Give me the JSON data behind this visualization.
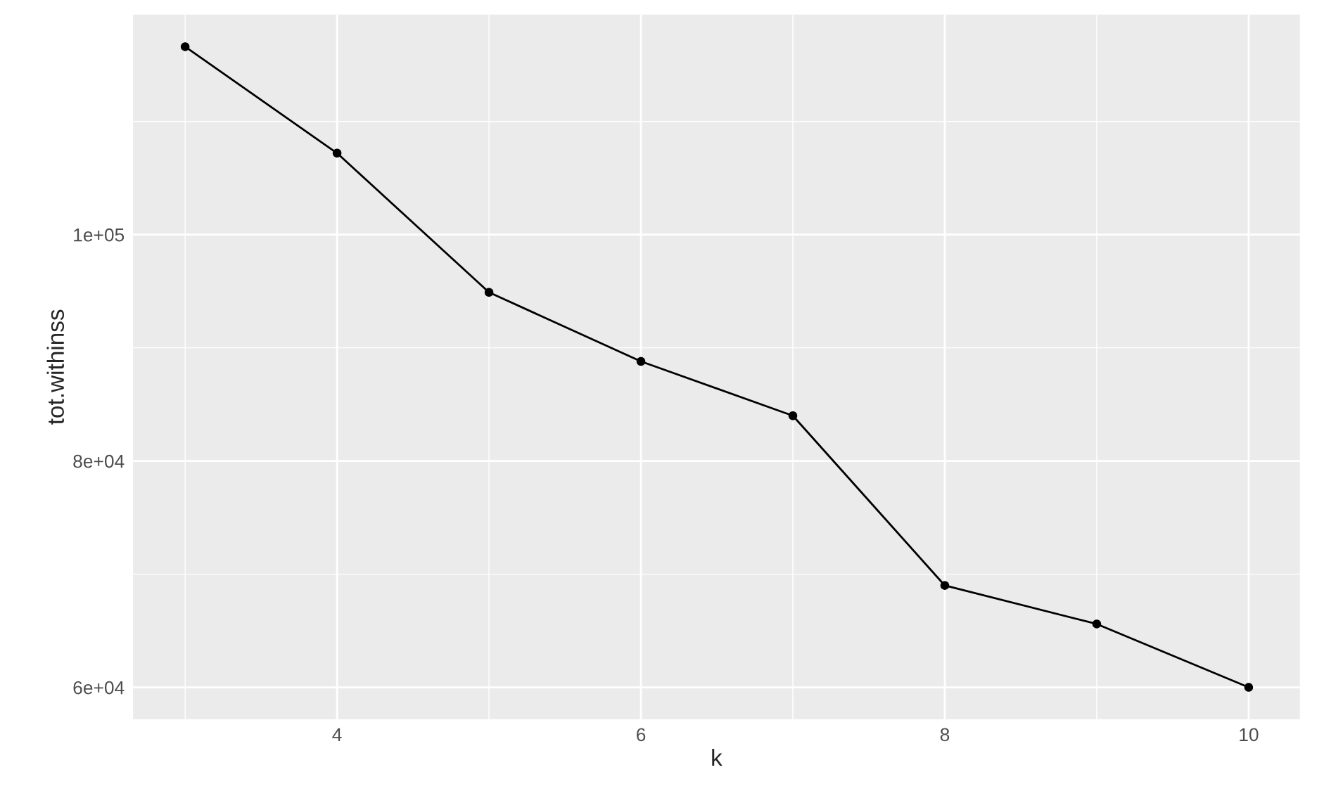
{
  "chart_data": {
    "type": "line",
    "xlabel": "k",
    "ylabel": "tot.withinss",
    "x": [
      3,
      4,
      5,
      6,
      7,
      8,
      9,
      10
    ],
    "series": [
      {
        "color": "#000000",
        "values": [
          116600,
          107200,
          94900,
          88800,
          84000,
          69000,
          65600,
          60000
        ]
      }
    ],
    "marker": "circle",
    "line_style": "solid",
    "xlim": [
      2.657,
      10.337
    ],
    "xticks": [
      {
        "value": 3,
        "label": null
      },
      4,
      {
        "value": 5,
        "label": null
      },
      6,
      {
        "value": 7,
        "label": null
      },
      8,
      {
        "value": 9,
        "label": null
      },
      10
    ],
    "ylim": [
      57180,
      119440
    ],
    "yticks": [
      {
        "value": 60000,
        "label": "6e+04"
      },
      {
        "value": 70000,
        "label": null
      },
      {
        "value": 80000,
        "label": "8e+04"
      },
      {
        "value": 90000,
        "label": null
      },
      {
        "value": 100000,
        "label": "1e+05"
      },
      {
        "value": 110000,
        "label": null
      }
    ],
    "grid": true
  }
}
